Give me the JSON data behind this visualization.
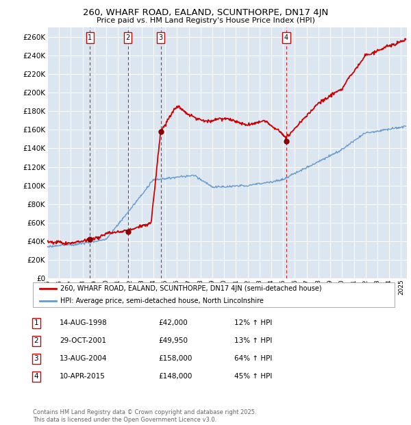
{
  "title": "260, WHARF ROAD, EALAND, SCUNTHORPE, DN17 4JN",
  "subtitle": "Price paid vs. HM Land Registry's House Price Index (HPI)",
  "ylim": [
    0,
    270000
  ],
  "yticks": [
    0,
    20000,
    40000,
    60000,
    80000,
    100000,
    120000,
    140000,
    160000,
    180000,
    200000,
    220000,
    240000,
    260000
  ],
  "year_start": 1995,
  "year_end": 2025,
  "plot_bg": "#dce6f1",
  "line_color_red": "#cc0000",
  "line_color_blue": "#6699cc",
  "sale_dates": [
    1998.62,
    2001.83,
    2004.62,
    2015.27
  ],
  "sale_prices": [
    42000,
    49950,
    158000,
    148000
  ],
  "sale_labels": [
    "1",
    "2",
    "3",
    "4"
  ],
  "vline_color": "#cc0000",
  "legend_label_red": "260, WHARF ROAD, EALAND, SCUNTHORPE, DN17 4JN (semi-detached house)",
  "legend_label_blue": "HPI: Average price, semi-detached house, North Lincolnshire",
  "table_rows": [
    {
      "num": "1",
      "date": "14-AUG-1998",
      "price": "£42,000",
      "change": "12% ↑ HPI"
    },
    {
      "num": "2",
      "date": "29-OCT-2001",
      "price": "£49,950",
      "change": "13% ↑ HPI"
    },
    {
      "num": "3",
      "date": "13-AUG-2004",
      "price": "£158,000",
      "change": "64% ↑ HPI"
    },
    {
      "num": "4",
      "date": "10-APR-2015",
      "price": "£148,000",
      "change": "45% ↑ HPI"
    }
  ],
  "footer": "Contains HM Land Registry data © Crown copyright and database right 2025.\nThis data is licensed under the Open Government Licence v3.0."
}
